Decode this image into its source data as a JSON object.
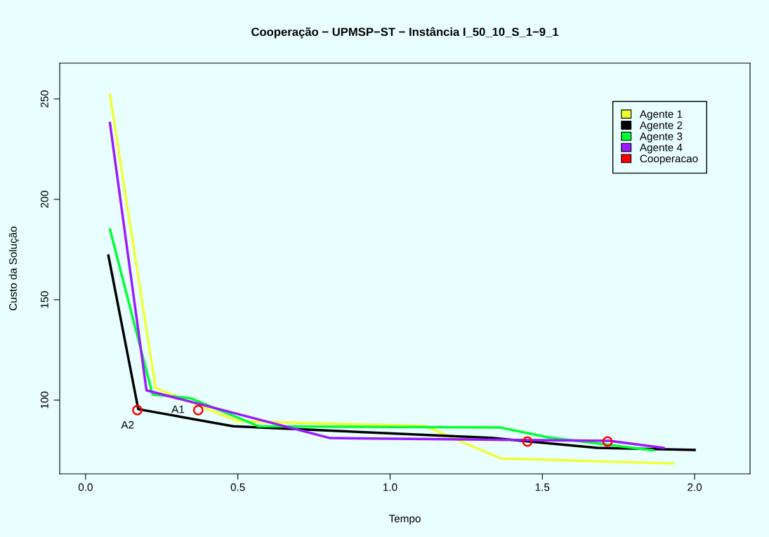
{
  "chart_data": {
    "type": "line",
    "title": "Cooperação − UPMSP−ST − Instância I_50_10_S_1−9_1",
    "xlabel": "Tempo",
    "ylabel": "Custo da Solução",
    "series": [
      {
        "name": "Agente 1",
        "color": "#f0ff33",
        "x": [
          0.08,
          0.23,
          0.5,
          1.115,
          1.363,
          1.93
        ],
        "values": [
          252,
          106,
          89.5,
          87.1,
          71,
          68.5
        ]
      },
      {
        "name": "Agente 2",
        "color": "#000000",
        "x": [
          0.075,
          0.173,
          0.485,
          1.333,
          1.68,
          2.0
        ],
        "values": [
          172,
          95.5,
          87,
          81.2,
          76.2,
          75.2
        ]
      },
      {
        "name": "Agente 3",
        "color": "#00ff33",
        "x": [
          0.08,
          0.22,
          0.344,
          0.568,
          1.36,
          1.518,
          1.864
        ],
        "values": [
          185,
          102.8,
          101,
          87,
          86.4,
          81.5,
          75
        ]
      },
      {
        "name": "Agente 4",
        "color": "#9a1aff",
        "x": [
          0.08,
          0.2,
          0.803,
          1.72,
          1.898
        ],
        "values": [
          238,
          104.9,
          81.1,
          79.7,
          76.2
        ]
      },
      {
        "name": "Cooperacao",
        "color": "#ff0000",
        "type": "scatter",
        "marker": "circle",
        "x": [
          0.17,
          0.37,
          1.451,
          1.714
        ],
        "values": [
          95,
          95,
          79.4,
          79.4
        ]
      }
    ],
    "annotations": [
      {
        "text": "A2",
        "x": 0.17,
        "y": 95
      },
      {
        "text": "A1",
        "x": 0.37,
        "y": 95
      }
    ],
    "xlim": [
      -0.085,
      2.182
    ],
    "ylim": [
      63.3,
      267.8
    ],
    "xticks": [
      {
        "value": 0,
        "label": "0.0"
      },
      {
        "value": 0.5,
        "label": "0.5"
      },
      {
        "value": 1,
        "label": "1.0"
      },
      {
        "value": 1.5,
        "label": "1.5"
      },
      {
        "value": 2,
        "label": "2.0"
      }
    ],
    "yticks": [
      100,
      150,
      200,
      250
    ],
    "legend": "top right",
    "grid": false
  }
}
